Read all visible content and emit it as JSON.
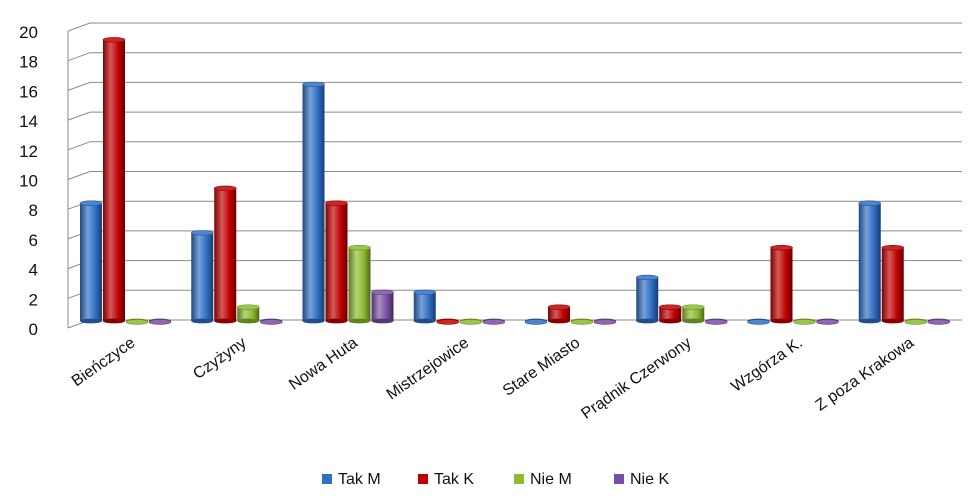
{
  "chart_data": {
    "type": "bar",
    "categories": [
      "Bieńczyce",
      "Czyżyny",
      "Nowa Huta",
      "Mistrzejowice",
      "Stare Miasto",
      "Prądnik Czerwony",
      "Wzgórza K.",
      "Z poza Krakowa"
    ],
    "series": [
      {
        "name": "Tak M",
        "color": "#2f6fc4",
        "values": [
          8,
          6,
          16,
          2,
          0,
          3,
          0,
          8
        ]
      },
      {
        "name": "Tak K",
        "color": "#c00000",
        "values": [
          19,
          9,
          8,
          0,
          1,
          1,
          5,
          5
        ]
      },
      {
        "name": "Nie M",
        "color": "#8dba31",
        "values": [
          0,
          1,
          5,
          0,
          0,
          1,
          0,
          0
        ]
      },
      {
        "name": "Nie K",
        "color": "#7a4fa3",
        "values": [
          0,
          0,
          2,
          0,
          0,
          0,
          0,
          0
        ]
      }
    ],
    "ylim": [
      0,
      20
    ],
    "yticks": [
      "0",
      "2",
      "4",
      "6",
      "8",
      "10",
      "12",
      "14",
      "16",
      "18",
      "20"
    ],
    "grid": true,
    "legend_position": "bottom",
    "style": "3d-cylinder"
  }
}
